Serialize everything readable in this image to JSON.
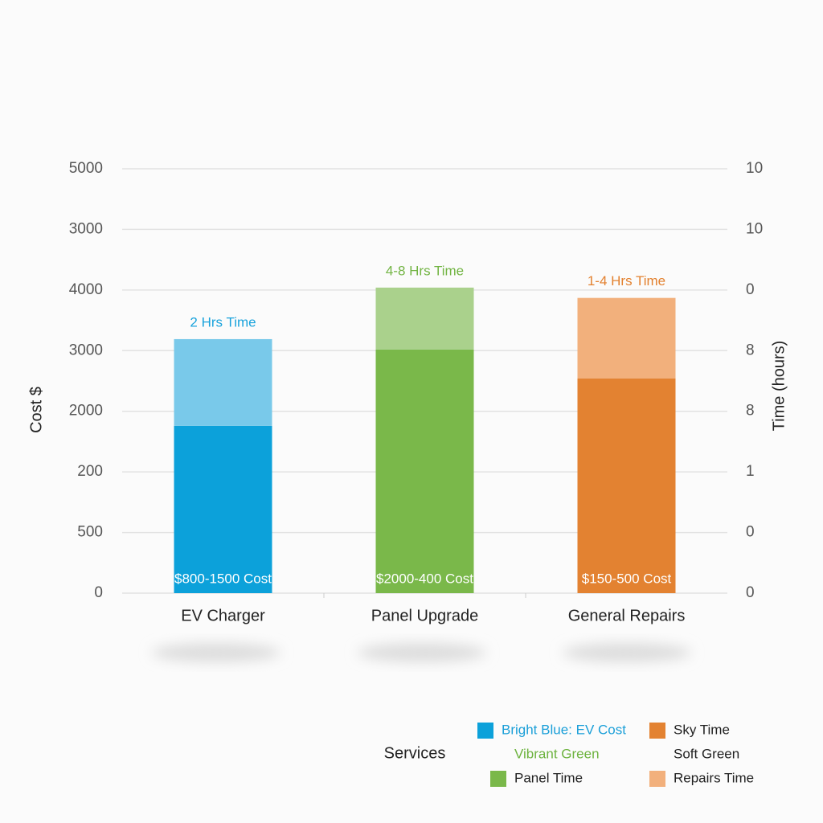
{
  "chart_data": {
    "type": "stacked_bar",
    "ylabel": "Cost $",
    "y2label": "Time (hours)",
    "xlabel": "Services",
    "categories": [
      "EV Charger",
      "Panel Upgrade",
      "General Repairs"
    ],
    "ylim": [
      0,
      7
    ],
    "yticks": [
      {
        "value": 0,
        "label": "0"
      },
      {
        "value": 1,
        "label": "500"
      },
      {
        "value": 2,
        "label": "200"
      },
      {
        "value": 3,
        "label": "2000"
      },
      {
        "value": 4,
        "label": "3000"
      },
      {
        "value": 5,
        "label": "4000"
      },
      {
        "value": 6,
        "label": "3000"
      },
      {
        "value": 7,
        "label": "5000"
      }
    ],
    "y2lim": [
      0,
      7
    ],
    "y2ticks": [
      {
        "value": 0,
        "label": "0"
      },
      {
        "value": 1,
        "label": "0"
      },
      {
        "value": 2,
        "label": "1"
      },
      {
        "value": 3,
        "label": "8"
      },
      {
        "value": 4,
        "label": "8"
      },
      {
        "value": 5,
        "label": "0"
      },
      {
        "value": 6,
        "label": "10"
      },
      {
        "value": 7,
        "label": "10"
      }
    ],
    "grid": true,
    "series": [
      {
        "colors": [
          "#0ca1da",
          "#7ab84a",
          "#e38231"
        ],
        "values": [
          2.76,
          4.02,
          3.54
        ],
        "labels": [
          "$800-1500 Cost",
          "$2000-400 Cost",
          "$150-500 Cost"
        ],
        "label_color": "#ffffff"
      },
      {
        "colors": [
          "#79c9ea",
          "#aad18c",
          "#f2b07c"
        ],
        "values": [
          1.43,
          1.02,
          1.33
        ],
        "labels": [
          "2 Hrs Time",
          "4-8 Hrs Time",
          "1-4 Hrs Time"
        ],
        "label_colors": [
          "#1aa3dc",
          "#72b443",
          "#e3812f"
        ]
      }
    ],
    "legend": [
      {
        "label": "Bright Blue: EV Cost",
        "swatch": "#0ca1da",
        "text_color": "#1a9fd8"
      },
      {
        "label": "Vibrant Green",
        "text_color": "#6db33f"
      },
      {
        "label": "Panel Time",
        "swatch": "#7ab84a",
        "text_color": "#222222"
      },
      {
        "label": "Sky Time",
        "swatch": "#e38231",
        "text_color": "#222222"
      },
      {
        "label": "Soft Green",
        "text_color": "#222222"
      },
      {
        "label": "Repairs Time",
        "swatch": "#f2b07c",
        "text_color": "#222222"
      }
    ]
  }
}
